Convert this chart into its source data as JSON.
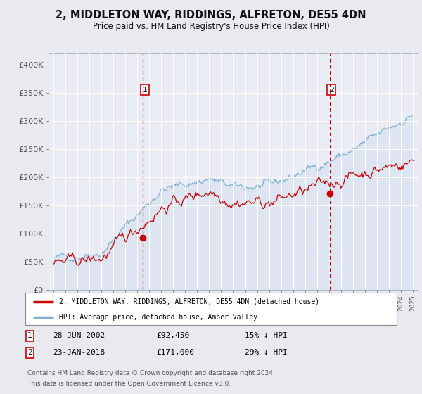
{
  "title": "2, MIDDLETON WAY, RIDDINGS, ALFRETON, DE55 4DN",
  "subtitle": "Price paid vs. HM Land Registry's House Price Index (HPI)",
  "ylim": [
    0,
    420000
  ],
  "yticks": [
    0,
    50000,
    100000,
    150000,
    200000,
    250000,
    300000,
    350000,
    400000
  ],
  "ytick_labels": [
    "£0",
    "£50K",
    "£100K",
    "£150K",
    "£200K",
    "£250K",
    "£300K",
    "£350K",
    "£400K"
  ],
  "background_color": "#e8eaf0",
  "plot_bg_color": "#eaecf5",
  "hpi_color": "#7bafd4",
  "hpi_fill_color": "#c5d8ee",
  "price_color": "#cc0000",
  "sale1_year": 2002.49,
  "sale1_price": 92450,
  "sale2_year": 2018.05,
  "sale2_price": 171000,
  "legend_label_price": "2, MIDDLETON WAY, RIDDINGS, ALFRETON, DE55 4DN (detached house)",
  "legend_label_hpi": "HPI: Average price, detached house, Amber Valley",
  "footer1": "Contains HM Land Registry data © Crown copyright and database right 2024.",
  "footer2": "This data is licensed under the Open Government Licence v3.0.",
  "table_row1": [
    "1",
    "28-JUN-2002",
    "£92,450",
    "15% ↓ HPI"
  ],
  "table_row2": [
    "2",
    "23-JAN-2018",
    "£171,000",
    "29% ↓ HPI"
  ]
}
